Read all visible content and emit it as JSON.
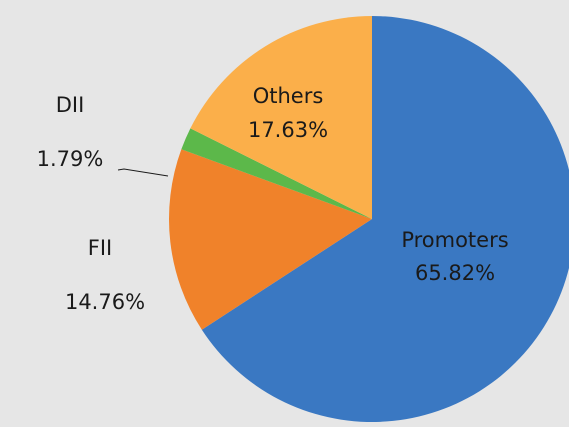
{
  "chart_data": {
    "type": "pie",
    "categories": [
      "Promoters",
      "FII",
      "DII",
      "Others"
    ],
    "values": [
      65.82,
      14.76,
      1.79,
      17.63
    ],
    "value_labels": [
      "65.82%",
      "14.76%",
      "1.79%",
      "17.63%"
    ],
    "colors": [
      "#3a78c2",
      "#f0822a",
      "#5cb84a",
      "#fbaf4a"
    ]
  }
}
